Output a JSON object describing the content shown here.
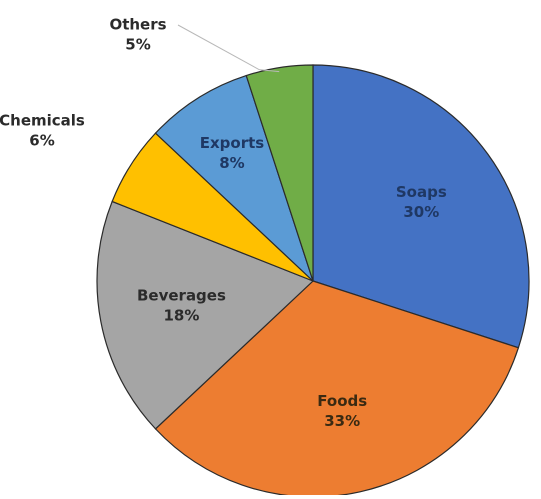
{
  "chart_data": {
    "type": "pie",
    "title": "",
    "slices": [
      {
        "label": "Soaps",
        "value": 30,
        "value_label": "30%",
        "color": "#4472C4",
        "label_color": "#1F3864",
        "label_position": "inside"
      },
      {
        "label": "Foods",
        "value": 33,
        "value_label": "33%",
        "color": "#ED7D31",
        "label_color": "#3A2A12",
        "label_position": "inside"
      },
      {
        "label": "Beverages",
        "value": 18,
        "value_label": "18%",
        "color": "#A5A5A5",
        "label_color": "#2B2B2B",
        "label_position": "inside"
      },
      {
        "label": "Chemicals",
        "value": 6,
        "value_label": "6%",
        "color": "#FFC000",
        "label_color": "#2B2B2B",
        "label_position": "outside-left"
      },
      {
        "label": "Exports",
        "value": 8,
        "value_label": "8%",
        "color": "#5B9BD5",
        "label_color": "#1F3864",
        "label_position": "inside"
      },
      {
        "label": "Others",
        "value": 5,
        "value_label": "5%",
        "color": "#70AD47",
        "label_color": "#2B2B2B",
        "label_position": "outside-top"
      }
    ],
    "start": "12 o'clock",
    "direction": "clockwise",
    "legend": "none"
  }
}
